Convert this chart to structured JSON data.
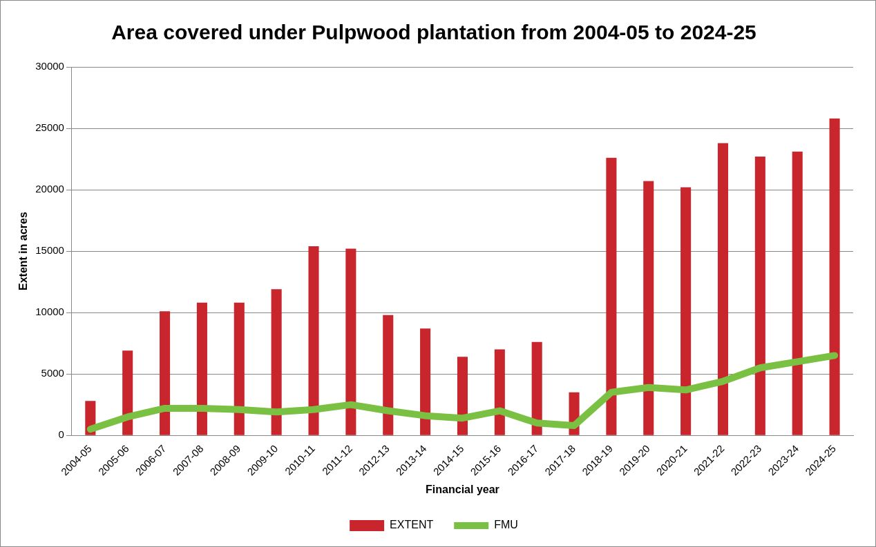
{
  "chart_data": {
    "type": "bar",
    "title": "Area covered under Pulpwood plantation from 2004-05 to 2024-25",
    "xlabel": "Financial year",
    "ylabel": "Extent in acres",
    "categories": [
      "2004-05",
      "2005-06",
      "2006-07",
      "2007-08",
      "2008-09",
      "2009-10",
      "2010-11",
      "2011-12",
      "2012-13",
      "2013-14",
      "2014-15",
      "2015-16",
      "2016-17",
      "2017-18",
      "2018-19",
      "2019-20",
      "2020-21",
      "2021-22",
      "2022-23",
      "2023-24",
      "2024-25"
    ],
    "series": [
      {
        "name": "EXTENT",
        "color": "#c8262c",
        "values": [
          2800,
          6900,
          10100,
          10800,
          10800,
          11900,
          15400,
          15200,
          9800,
          8700,
          6400,
          7000,
          7600,
          3500,
          22600,
          20700,
          20200,
          23800,
          22700,
          23100,
          25800
        ]
      },
      {
        "name": "FMU",
        "type": "line",
        "color": "#7ac143",
        "values": [
          500,
          1500,
          2200,
          2200,
          2100,
          1900,
          2100,
          2500,
          2000,
          1600,
          1400,
          2000,
          1000,
          800,
          3500,
          3900,
          3700,
          4400,
          5500,
          6000,
          6500
        ]
      }
    ],
    "ylim": [
      0,
      30000
    ],
    "yticks": [
      0,
      5000,
      10000,
      15000,
      20000,
      25000,
      30000
    ],
    "grid": "y",
    "legend": "bottom",
    "marker": "none",
    "line_style": "solid"
  }
}
